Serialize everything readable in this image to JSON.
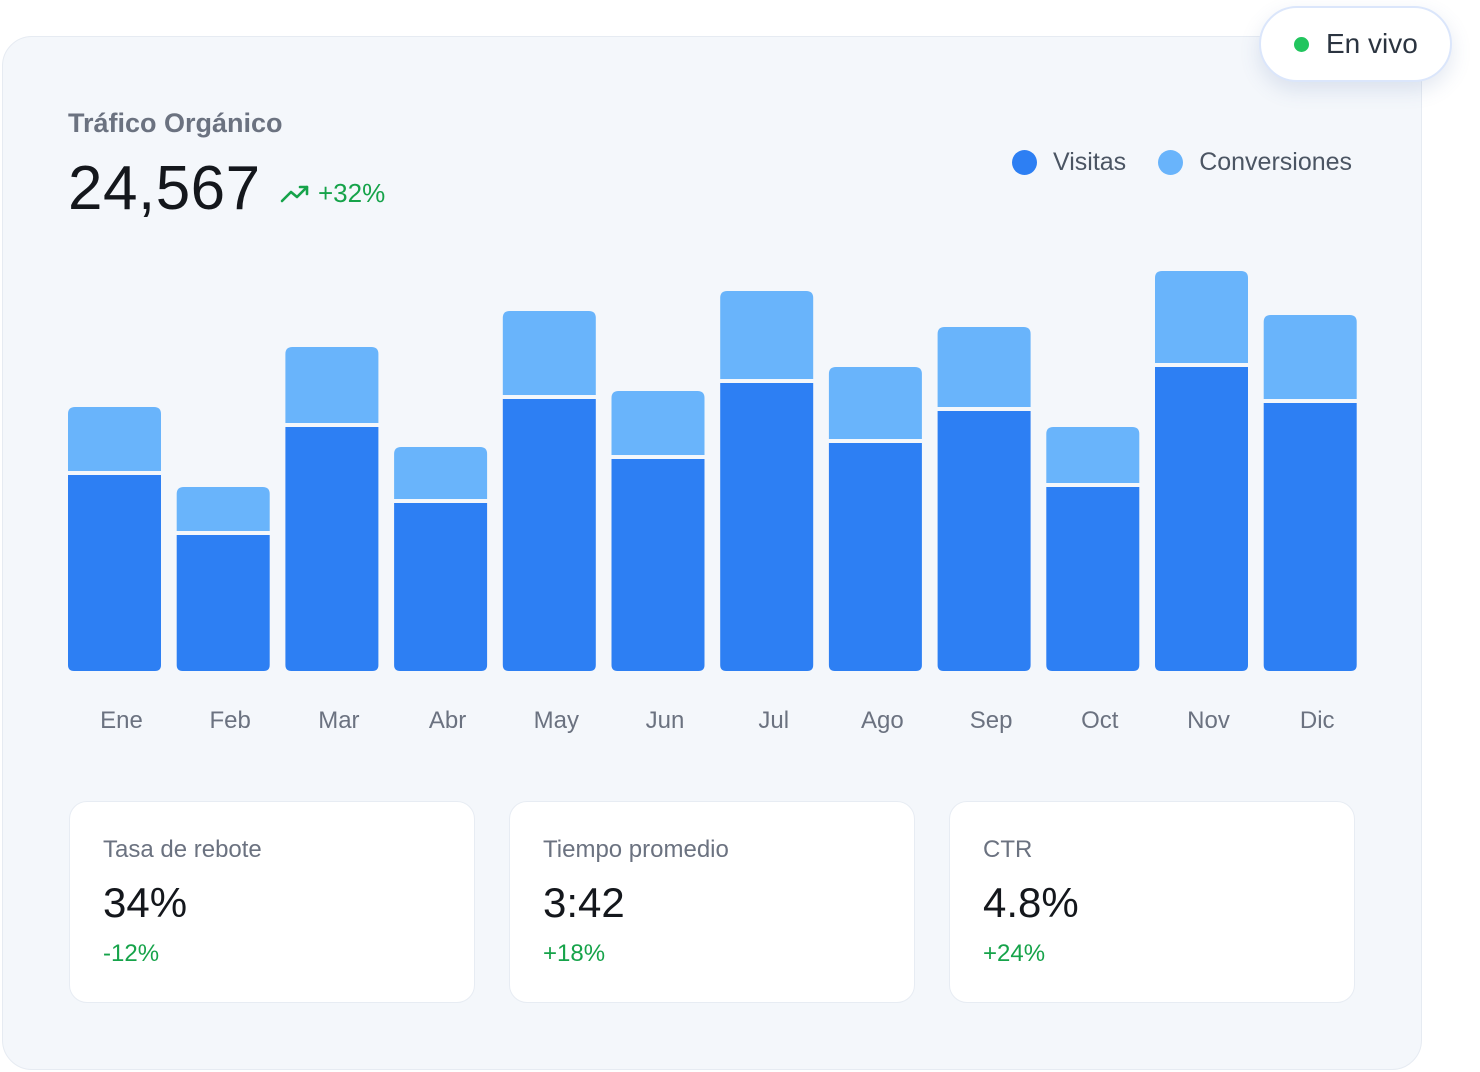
{
  "badge": {
    "label": "En vivo",
    "dot_color": "#22c55e"
  },
  "header": {
    "title": "Tráfico Orgánico",
    "value": "24,567",
    "trend_icon": "trending-up-icon",
    "trend": "+32%"
  },
  "legend": [
    {
      "label": "Visitas",
      "color": "#2d7ff3"
    },
    {
      "label": "Conversiones",
      "color": "#69b4fb"
    }
  ],
  "chart_data": {
    "type": "bar",
    "stacked": true,
    "categories": [
      "Ene",
      "Feb",
      "Mar",
      "Abr",
      "May",
      "Jun",
      "Jul",
      "Ago",
      "Sep",
      "Oct",
      "Nov",
      "Dic"
    ],
    "series": [
      {
        "name": "Visitas",
        "color": "#2d7ff3",
        "values": [
          49,
          34,
          61,
          42,
          68,
          53,
          72,
          57,
          65,
          46,
          76,
          67
        ]
      },
      {
        "name": "Conversiones",
        "color": "#69b4fb",
        "values": [
          16,
          11,
          19,
          13,
          21,
          16,
          22,
          18,
          20,
          14,
          23,
          21
        ]
      }
    ],
    "ylim": [
      0,
      100
    ],
    "grid": false,
    "legend_position": "top-right"
  },
  "stats": [
    {
      "label": "Tasa de rebote",
      "value": "34%",
      "change": "-12%"
    },
    {
      "label": "Tiempo promedio",
      "value": "3:42",
      "change": "+18%"
    },
    {
      "label": "CTR",
      "value": "4.8%",
      "change": "+24%"
    }
  ]
}
